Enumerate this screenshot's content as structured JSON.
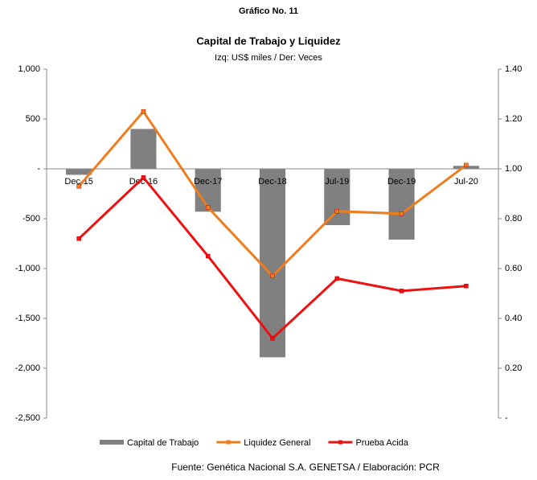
{
  "chart_data": {
    "type": "bar_line",
    "figure_label": "Gráfico No. 11",
    "title": "Capital de Trabajo y Liquidez",
    "subtitle": "Izq: US$ miles / Der: Veces",
    "source": "Fuente: Genética Nacional S.A. GENETSA / Elaboración: PCR",
    "categories": [
      "Dec-15",
      "Dec-16",
      "Dec-17",
      "Dec-18",
      "Jul-19",
      "Dec-19",
      "Jul-20"
    ],
    "series": [
      {
        "name": "Capital de Trabajo",
        "kind": "bar",
        "color": "#808080",
        "axis": "y",
        "values": [
          -60,
          400,
          -430,
          -1890,
          -565,
          -710,
          30
        ]
      },
      {
        "name": "Liquidez General",
        "kind": "line",
        "color": "#ee7d1e",
        "axis": "y2",
        "values": [
          0.93,
          1.23,
          0.845,
          0.57,
          0.83,
          0.82,
          1.015
        ]
      },
      {
        "name": "Prueba Acida",
        "kind": "line",
        "color": "#ee1111",
        "axis": "y2",
        "values": [
          0.72,
          0.965,
          0.65,
          0.32,
          0.56,
          0.51,
          0.53
        ]
      }
    ],
    "ylim": [
      -2500,
      1000
    ],
    "yticks": [
      {
        "value": 1000,
        "label": "1,000"
      },
      500,
      {
        "value": 0,
        "label": "-"
      },
      -500,
      {
        "value": -1000,
        "label": "-1,000"
      },
      {
        "value": -1500,
        "label": "-1,500"
      },
      {
        "value": -2000,
        "label": "-2,000"
      },
      {
        "value": -2500,
        "label": "-2,500"
      }
    ],
    "y2lim": [
      0,
      1.4
    ],
    "y2ticks": [
      {
        "value": 1.4,
        "label": "1.40"
      },
      {
        "value": 1.2,
        "label": "1.20"
      },
      {
        "value": 1,
        "label": "1.00"
      },
      {
        "value": 0.8,
        "label": "0.80"
      },
      {
        "value": 0.6,
        "label": "0.60"
      },
      {
        "value": 0.4,
        "label": "0.40"
      },
      {
        "value": 0.2,
        "label": "0.20"
      },
      {
        "value": 0,
        "label": "-"
      }
    ],
    "grid": false
  }
}
